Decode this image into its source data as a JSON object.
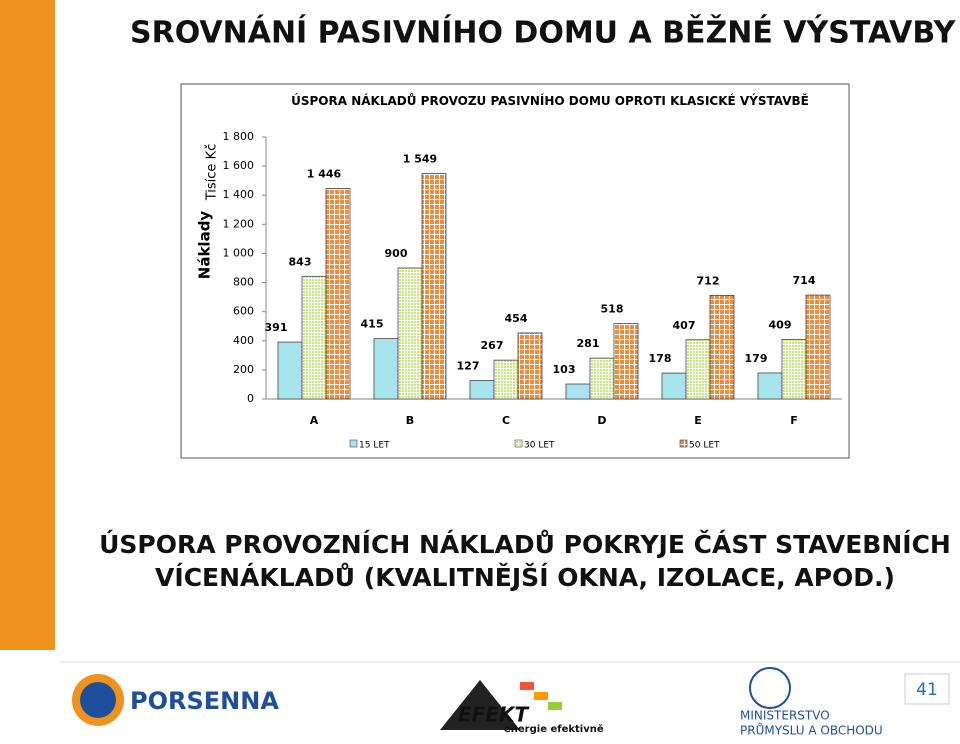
{
  "header": {
    "title": "SROVNÁNÍ PASIVNÍHO DOMU A BĚŽNÉ VÝSTAVBY"
  },
  "chart_data": {
    "type": "bar",
    "title": "ÚSPORA NÁKLADŮ PROVOZU PASIVNÍHO DOMU OPROTI KLASICKÉ VÝSTAVBĚ",
    "y_label": "Tisíce Kč",
    "y_group_label": "Náklady",
    "categories": [
      "A",
      "B",
      "C",
      "D",
      "E",
      "F"
    ],
    "series": [
      {
        "name": "15 LET",
        "color": "#a8e4ee",
        "values": [
          391,
          415,
          127,
          103,
          178,
          179
        ]
      },
      {
        "name": "30 LET",
        "color": "#c8e57a",
        "values": [
          843,
          900,
          267,
          281,
          407,
          409
        ]
      },
      {
        "name": "50 LET",
        "color": "#f28a3c",
        "values": [
          1446,
          1549,
          454,
          518,
          712,
          714
        ],
        "value_labels": [
          "1 446",
          "1 549",
          "454",
          "518",
          "712",
          "714"
        ]
      }
    ],
    "ylim": [
      0,
      1800
    ],
    "yticks": [
      0,
      200,
      400,
      600,
      800,
      {
        "value": 1000,
        "label": "1 000"
      },
      {
        "value": 1200,
        "label": "1 200"
      },
      {
        "value": 1400,
        "label": "1 400"
      },
      {
        "value": 1600,
        "label": "1 600"
      },
      {
        "value": 1800,
        "label": "1 800"
      }
    ],
    "legend": "bottom"
  },
  "body": {
    "lines": [
      "ÚSPORA PROVOZNÍCH NÁKLADŮ POKRYJE ČÁST STAVEBNÍCH",
      "VÍCENÁKLADŮ (KVALITNĚJŠÍ OKNA, IZOLACE, APOD.)"
    ]
  },
  "footer": {
    "logos": [
      "PORSENNA",
      "EFEKT",
      "energie efektivně",
      "MINISTERSTVO",
      "PRŮMYSLU A OBCHODU"
    ],
    "page_number": 41
  }
}
